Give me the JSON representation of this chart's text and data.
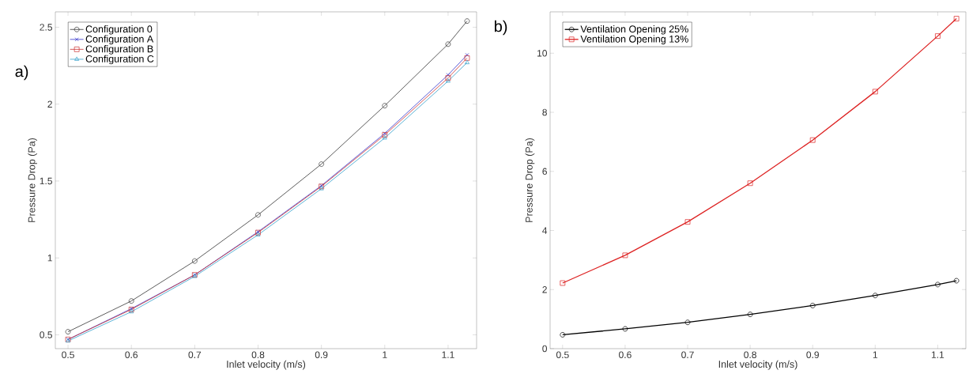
{
  "chart_data": [
    {
      "type": "line",
      "xlabel": "Inlet velocity (m/s)",
      "ylabel": "Pressure Drop (Pa)",
      "annotations": [
        "a)"
      ],
      "x": [
        0.5,
        0.6,
        0.7,
        0.8,
        0.9,
        1.0,
        1.1,
        1.13
      ],
      "series": [
        {
          "name": "Configuration 0",
          "color": "#333333",
          "marker": "circle",
          "values": [
            0.52,
            0.72,
            0.98,
            1.28,
            1.61,
            1.99,
            2.39,
            2.54
          ]
        },
        {
          "name": "Configuration A",
          "color": "#3333cc",
          "marker": "cross",
          "values": [
            0.47,
            0.67,
            0.89,
            1.17,
            1.47,
            1.81,
            2.19,
            2.32
          ]
        },
        {
          "name": "Configuration B",
          "color": "#cc3333",
          "marker": "square",
          "values": [
            0.47,
            0.665,
            0.89,
            1.165,
            1.465,
            1.8,
            2.17,
            2.3
          ]
        },
        {
          "name": "Configuration C",
          "color": "#33a0cc",
          "marker": "triangle",
          "values": [
            0.46,
            0.65,
            0.88,
            1.15,
            1.45,
            1.78,
            2.15,
            2.27
          ]
        }
      ],
      "xlim": [
        0.48,
        1.145
      ],
      "ylim": [
        0.41,
        2.6
      ],
      "xticks": [
        0.5,
        0.6,
        0.7,
        0.8,
        0.9,
        1,
        1.1
      ],
      "yticks": [
        0.5,
        1,
        1.5,
        2,
        2.5
      ],
      "legend": "top left",
      "grid": false,
      "line_style": "solid"
    },
    {
      "type": "line",
      "xlabel": "Inlet velocity (m/s)",
      "ylabel": "Pressure Drop (Pa)",
      "annotations": [
        "b)"
      ],
      "x": [
        0.5,
        0.6,
        0.7,
        0.8,
        0.9,
        1.0,
        1.1,
        1.13
      ],
      "series": [
        {
          "name": "Ventilation Opening 25%",
          "color": "#000000",
          "marker": "circle",
          "values": [
            0.47,
            0.67,
            0.89,
            1.16,
            1.46,
            1.8,
            2.17,
            2.3
          ]
        },
        {
          "name": "Ventilation Opening 13%",
          "color": "#dd2222",
          "marker": "square",
          "values": [
            2.22,
            3.16,
            4.29,
            5.6,
            7.06,
            8.7,
            10.58,
            11.17
          ]
        }
      ],
      "xlim": [
        0.48,
        1.145
      ],
      "ylim": [
        0,
        11.4
      ],
      "xticks": [
        0.5,
        0.6,
        0.7,
        0.8,
        0.9,
        1,
        1.1
      ],
      "yticks": [
        0,
        2,
        4,
        6,
        8,
        10
      ],
      "legend": "top left",
      "grid": false,
      "line_style": "solid"
    }
  ]
}
